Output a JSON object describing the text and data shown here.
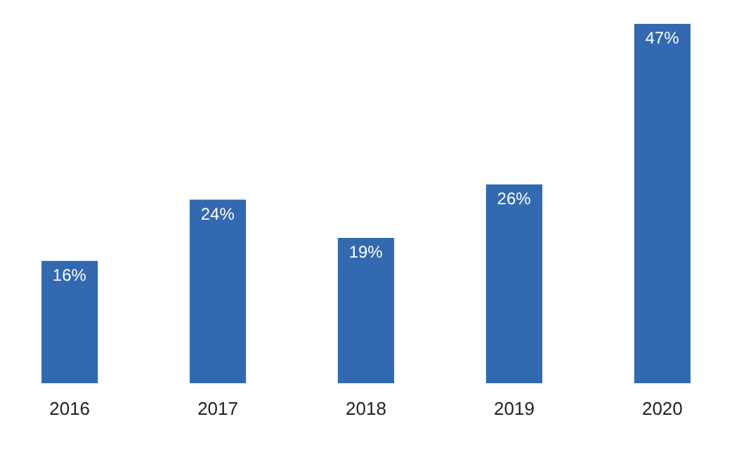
{
  "chart_data": {
    "type": "bar",
    "categories": [
      "2016",
      "2017",
      "2018",
      "2019",
      "2020"
    ],
    "values": [
      16,
      24,
      19,
      26,
      47
    ],
    "value_labels": [
      "16%",
      "24%",
      "19%",
      "26%",
      "47%"
    ],
    "color": "#3269b0"
  }
}
